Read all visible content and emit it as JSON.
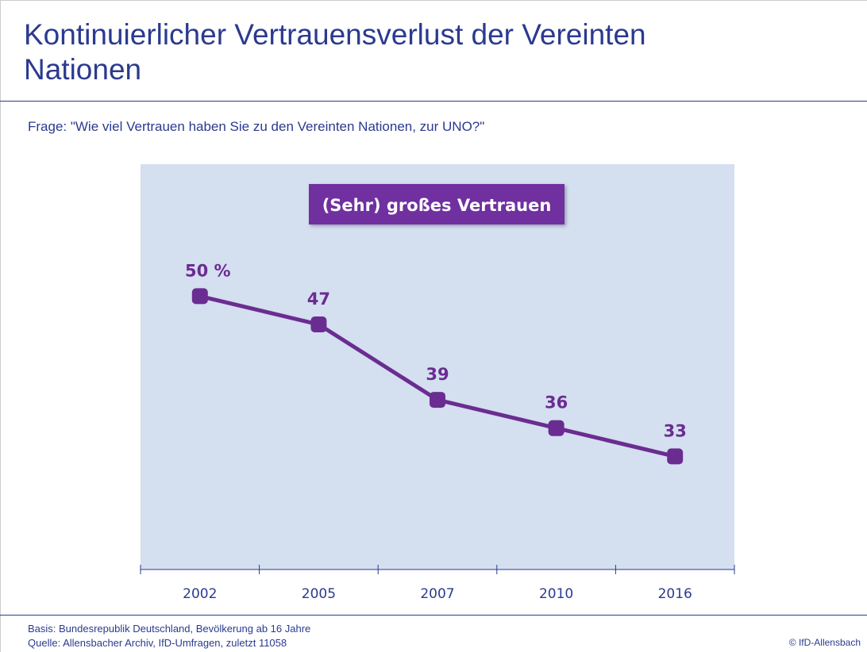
{
  "chart_data": {
    "type": "line",
    "title": "Kontinuierlicher Vertrauensverlust der Vereinten Nationen",
    "subtitle": "Frage:  \"Wie viel Vertrauen haben Sie zu den Vereinten Nationen, zur UNO?\"",
    "annotation": "(Sehr) großes Vertrauen",
    "categories": [
      "2002",
      "2005",
      "2007",
      "2010",
      "2016"
    ],
    "values": [
      50,
      47,
      39,
      36,
      33
    ],
    "value_labels": [
      "50 %",
      "47",
      "39",
      "36",
      "33"
    ],
    "color": "#6b2c91",
    "ylim": [
      21,
      64
    ],
    "notes": [
      "Basis: Bundesrepublik Deutschland, Bevölkerung ab 16 Jahre",
      "Quelle: Allensbacher Archiv, IfD-Umfragen, zuletzt 11058"
    ],
    "copyright": "© IfD-Allensbach"
  }
}
